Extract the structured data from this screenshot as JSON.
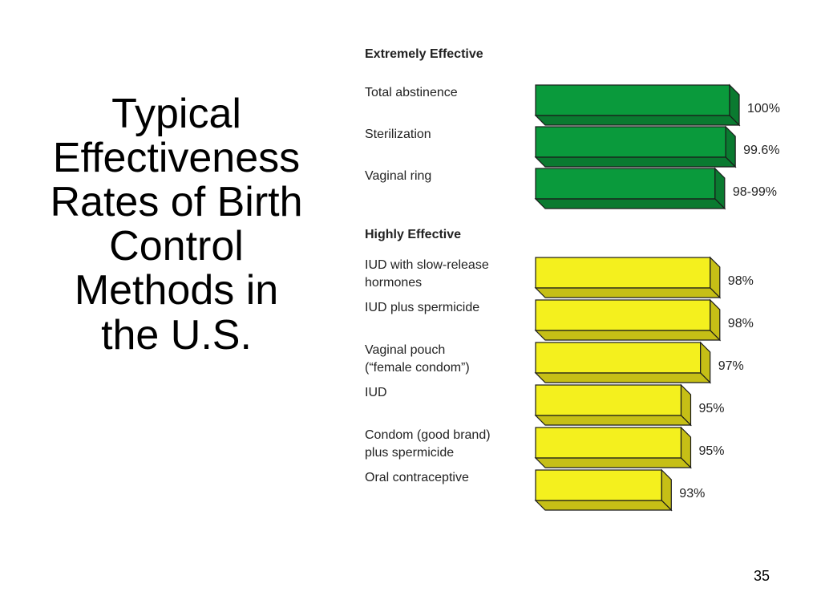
{
  "slide": {
    "title_lines": [
      "Typical",
      "Effectiveness",
      "Rates of Birth",
      "Control",
      "Methods in",
      "the U.S."
    ],
    "page_number": "35"
  },
  "colors": {
    "extremely": {
      "front": "#0a9a3c",
      "top": "#13b048",
      "side": "#0a7a30"
    },
    "highly": {
      "front": "#f4f01e",
      "top": "#fbf85a",
      "side": "#c6bf16"
    },
    "outline": "#1a1a1a"
  },
  "chart_data": {
    "type": "bar",
    "orientation": "horizontal",
    "style": "3d",
    "value_unit": "%",
    "xlim": [
      0,
      100
    ],
    "grid": false,
    "legend": "none",
    "sections": [
      {
        "name": "Extremely Effective",
        "color_key": "extremely",
        "bars": [
          {
            "label_lines": [
              "Total abstinence"
            ],
            "value": 100,
            "value_label": "100%"
          },
          {
            "label_lines": [
              "Sterilization"
            ],
            "value": 99.6,
            "value_label": "99.6%"
          },
          {
            "label_lines": [
              "Vaginal ring"
            ],
            "value": 98.5,
            "value_label": "98-99%"
          }
        ]
      },
      {
        "name": "Highly Effective",
        "color_key": "highly",
        "bars": [
          {
            "label_lines": [
              "IUD with slow-release",
              "hormones"
            ],
            "value": 98,
            "value_label": "98%"
          },
          {
            "label_lines": [
              "IUD plus spermicide"
            ],
            "value": 98,
            "value_label": "98%"
          },
          {
            "label_lines": [
              "Vaginal pouch",
              "(“female condom”)"
            ],
            "value": 97,
            "value_label": "97%"
          },
          {
            "label_lines": [
              "IUD"
            ],
            "value": 95,
            "value_label": "95%"
          },
          {
            "label_lines": [
              "Condom (good brand)",
              "plus spermicide"
            ],
            "value": 95,
            "value_label": "95%"
          },
          {
            "label_lines": [
              "Oral contraceptive"
            ],
            "value": 93,
            "value_label": "93%"
          }
        ]
      }
    ]
  }
}
